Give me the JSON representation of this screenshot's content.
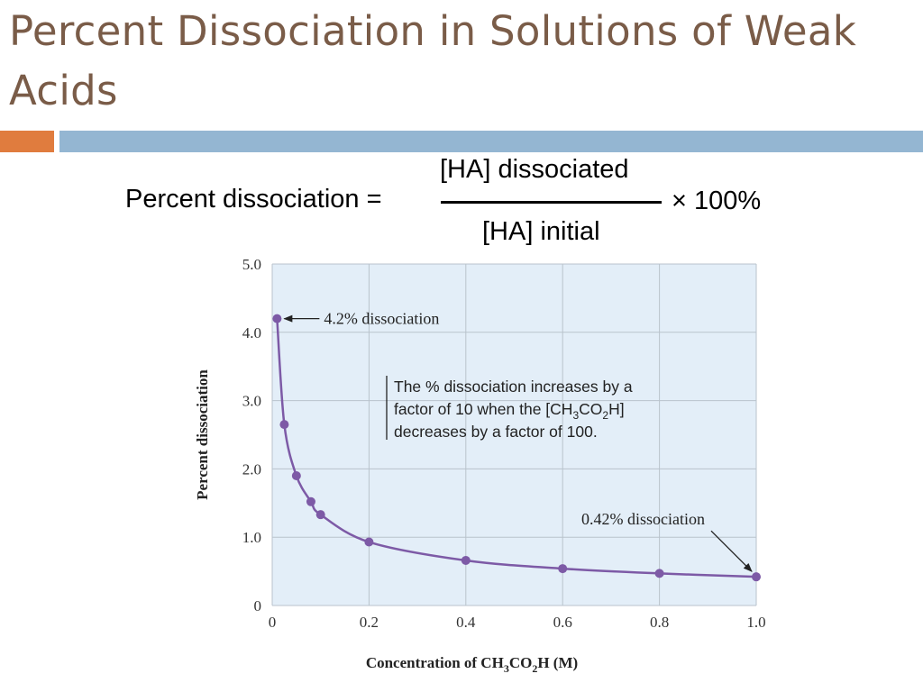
{
  "slide": {
    "title": "Percent Dissociation in Solutions of Weak Acids",
    "accent_colors": {
      "orange": "#e07c3e",
      "blue": "#94b6d2",
      "title": "#7a5c48"
    }
  },
  "formula": {
    "lhs": "Percent dissociation =",
    "numerator": "[HA] dissociated",
    "denominator": "[HA] initial",
    "rhs": "× 100%"
  },
  "chart_data": {
    "type": "line",
    "title": "",
    "xlabel": {
      "base": "Concentration of CH",
      "sub1": "3",
      "mid": "CO",
      "sub2": "2",
      "end": "H (M)"
    },
    "ylabel": "Percent dissociation",
    "xlim": [
      0,
      1.0
    ],
    "ylim": [
      0,
      5.0
    ],
    "x_ticks": [
      "0",
      "0.2",
      "0.4",
      "0.6",
      "0.8",
      "1.0"
    ],
    "y_ticks": [
      "0",
      "1.0",
      "2.0",
      "3.0",
      "4.0",
      "5.0"
    ],
    "x_tick_values": [
      0,
      0.2,
      0.4,
      0.6,
      0.8,
      1.0
    ],
    "y_tick_values": [
      0,
      1.0,
      2.0,
      3.0,
      4.0,
      5.0
    ],
    "grid": true,
    "plot_background": "#e3eef8",
    "line_color": "#7d5aa6",
    "marker_color": "#7d5aa6",
    "series": [
      {
        "x": [
          0.01,
          0.025,
          0.05,
          0.08,
          0.1,
          0.2,
          0.4,
          0.6,
          0.8,
          1.0
        ],
        "y": [
          4.2,
          2.65,
          1.9,
          1.52,
          1.33,
          0.93,
          0.66,
          0.54,
          0.47,
          0.42
        ]
      }
    ],
    "annotations": {
      "high": {
        "text": "4.2% dissociation",
        "x": 0.01,
        "y": 4.2
      },
      "low": {
        "text": "0.42% dissociation",
        "x": 1.0,
        "y": 0.42
      },
      "note": {
        "line1": "The % dissociation increases by a",
        "line2": {
          "pre": "factor of 10 when the [CH",
          "sub1": "3",
          "mid": "CO",
          "sub2": "2",
          "end": "H]"
        },
        "line3": "decreases by a factor of 100."
      }
    }
  }
}
